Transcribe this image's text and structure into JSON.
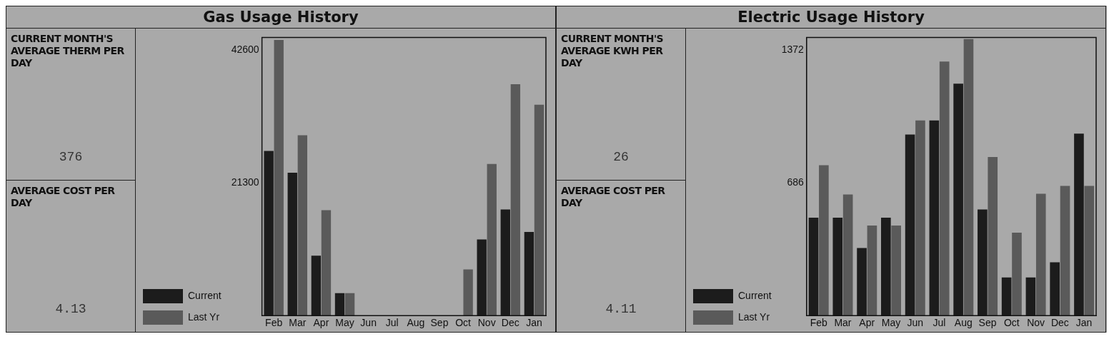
{
  "chart_data": [
    {
      "type": "bar",
      "title": "Gas Usage History",
      "categories": [
        "Feb",
        "Mar",
        "Apr",
        "May",
        "Jun",
        "Jul",
        "Aug",
        "Sep",
        "Oct",
        "Nov",
        "Dec",
        "Jan"
      ],
      "series": [
        {
          "name": "Current",
          "color": "#1c1c1c",
          "values": [
            26400,
            22900,
            9600,
            3600,
            0,
            0,
            0,
            0,
            0,
            12200,
            17000,
            13400
          ]
        },
        {
          "name": "Last Yr",
          "color": "#5a5a5a",
          "values": [
            44200,
            28900,
            16900,
            3600,
            0,
            0,
            0,
            0,
            7400,
            24300,
            37100,
            33800
          ]
        }
      ],
      "ylim": [
        0,
        44600
      ],
      "yticks": [
        21300,
        42600
      ],
      "grid": false,
      "legend": "left",
      "annotations": [
        "CURRENT MONTH'S AVERAGE THERM PER DAY",
        "376",
        "AVERAGE COST PER DAY",
        "4.13"
      ]
    },
    {
      "type": "bar",
      "title": "Electric Usage History",
      "categories": [
        "Feb",
        "Mar",
        "Apr",
        "May",
        "Jun",
        "Jul",
        "Aug",
        "Sep",
        "Oct",
        "Nov",
        "Dec",
        "Jan"
      ],
      "series": [
        {
          "name": "Current",
          "color": "#1c1c1c",
          "values": [
            505,
            505,
            349,
            505,
            935,
            1007,
            1197,
            548,
            197,
            197,
            275,
            939
          ]
        },
        {
          "name": "Last Yr",
          "color": "#5a5a5a",
          "values": [
            776,
            625,
            465,
            465,
            1007,
            1311,
            1427,
            819,
            428,
            629,
            669,
            669
          ]
        }
      ],
      "ylim": [
        0,
        1436
      ],
      "yticks": [
        686,
        1372
      ],
      "grid": false,
      "legend": "left",
      "annotations": [
        "CURRENT MONTH'S AVERAGE KWH PER DAY",
        "26",
        "AVERAGE COST PER DAY",
        "4.11"
      ]
    }
  ]
}
